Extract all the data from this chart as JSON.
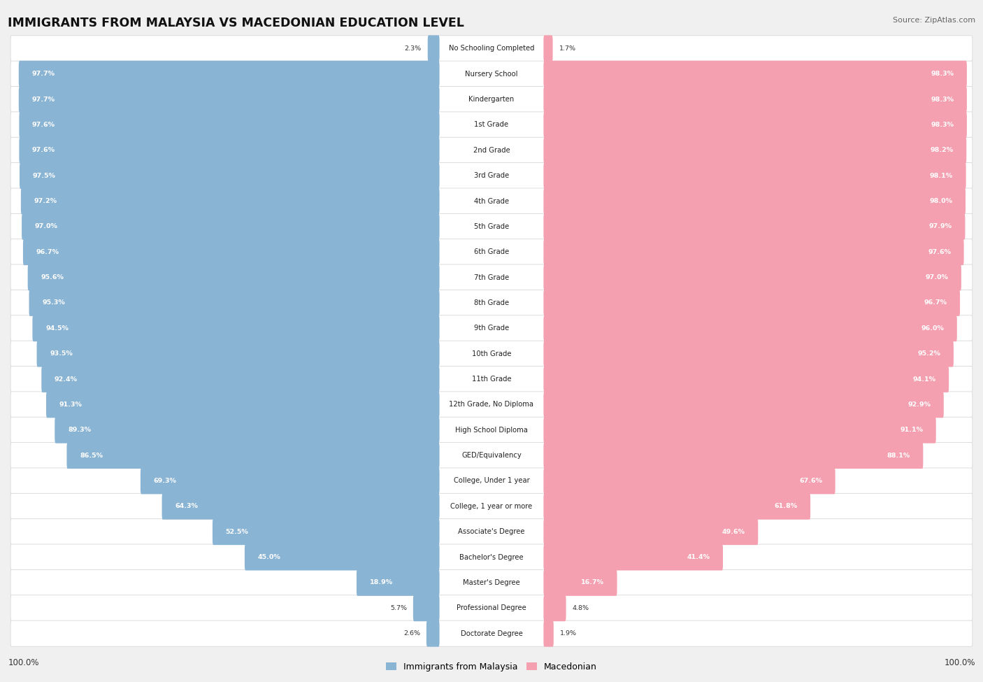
{
  "title": "IMMIGRANTS FROM MALAYSIA VS MACEDONIAN EDUCATION LEVEL",
  "source": "Source: ZipAtlas.com",
  "categories": [
    "No Schooling Completed",
    "Nursery School",
    "Kindergarten",
    "1st Grade",
    "2nd Grade",
    "3rd Grade",
    "4th Grade",
    "5th Grade",
    "6th Grade",
    "7th Grade",
    "8th Grade",
    "9th Grade",
    "10th Grade",
    "11th Grade",
    "12th Grade, No Diploma",
    "High School Diploma",
    "GED/Equivalency",
    "College, Under 1 year",
    "College, 1 year or more",
    "Associate's Degree",
    "Bachelor's Degree",
    "Master's Degree",
    "Professional Degree",
    "Doctorate Degree"
  ],
  "malaysia_values": [
    2.3,
    97.7,
    97.7,
    97.6,
    97.6,
    97.5,
    97.2,
    97.0,
    96.7,
    95.6,
    95.3,
    94.5,
    93.5,
    92.4,
    91.3,
    89.3,
    86.5,
    69.3,
    64.3,
    52.5,
    45.0,
    18.9,
    5.7,
    2.6
  ],
  "macedonian_values": [
    1.7,
    98.3,
    98.3,
    98.3,
    98.2,
    98.1,
    98.0,
    97.9,
    97.6,
    97.0,
    96.7,
    96.0,
    95.2,
    94.1,
    92.9,
    91.1,
    88.1,
    67.6,
    61.8,
    49.6,
    41.4,
    16.7,
    4.8,
    1.9
  ],
  "malaysia_color": "#8ab4d4",
  "macedonian_color": "#f4a0b0",
  "row_bg_color": "#ffffff",
  "outer_bg_color": "#f0f0f0",
  "legend_malaysia": "Immigrants from Malaysia",
  "legend_macedonian": "Macedonian",
  "left_label": "100.0%",
  "right_label": "100.0%"
}
